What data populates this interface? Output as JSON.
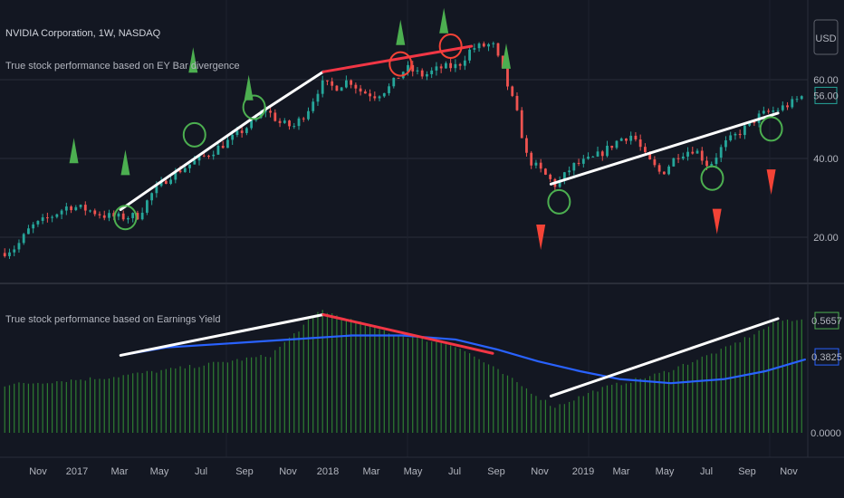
{
  "header": {
    "symbol_title": "NVIDIA Corporation, 1W, NASDAQ",
    "indicator_upper": "True stock performance based on EY Bar divergence",
    "indicator_lower": "True stock performance based on Earnings Yield",
    "currency_button": "USD"
  },
  "colors": {
    "background": "#131722",
    "grid": "#2a2e39",
    "up": "#26a69a",
    "down": "#ef5350",
    "ey_histogram": "#2e7d32",
    "ey_average": "#2962ff",
    "trendline_white": "#ffffff",
    "trendline_red": "#f23645",
    "marker_green": "#4caf50",
    "marker_red": "#f44336"
  },
  "chart_data": [
    {
      "type": "candlestick",
      "title": "NVIDIA Corporation, 1W, NASDAQ",
      "y_ticks": [
        "20.00",
        "40.00",
        "60.00"
      ],
      "ylim": [
        5,
        75
      ],
      "last_price_label": "56.00",
      "x_ticks": [
        "Nov",
        "2017",
        "Mar",
        "May",
        "Jul",
        "Sep",
        "Nov",
        "2018",
        "Mar",
        "May",
        "Jul",
        "Sep",
        "Nov",
        "2019",
        "Mar",
        "May",
        "Jul",
        "Sep",
        "Nov"
      ],
      "close_path": [
        [
          "2016-10-01",
          16.0
        ],
        [
          "2016-10-22",
          17.5
        ],
        [
          "2016-11-12",
          22.5
        ],
        [
          "2016-12-10",
          25.0
        ],
        [
          "2017-01-07",
          28.0
        ],
        [
          "2017-02-04",
          27.0
        ],
        [
          "2017-03-01",
          25.5
        ],
        [
          "2017-03-25",
          25.0
        ],
        [
          "2017-04-20",
          25.5
        ],
        [
          "2017-05-10",
          31.0
        ],
        [
          "2017-06-05",
          35.5
        ],
        [
          "2017-07-10",
          39.0
        ],
        [
          "2017-08-05",
          41.5
        ],
        [
          "2017-09-05",
          45.0
        ],
        [
          "2017-10-05",
          49.0
        ],
        [
          "2017-10-25",
          52.5
        ],
        [
          "2017-11-15",
          49.0
        ],
        [
          "2017-12-05",
          48.0
        ],
        [
          "2017-12-25",
          52.0
        ],
        [
          "2018-01-15",
          59.0
        ],
        [
          "2018-02-05",
          58.0
        ],
        [
          "2018-02-25",
          60.0
        ],
        [
          "2018-03-15",
          57.0
        ],
        [
          "2018-04-05",
          56.0
        ],
        [
          "2018-04-25",
          58.0
        ],
        [
          "2018-05-20",
          63.0
        ],
        [
          "2018-06-15",
          61.0
        ],
        [
          "2018-07-10",
          63.0
        ],
        [
          "2018-08-05",
          63.5
        ],
        [
          "2018-08-25",
          68.0
        ],
        [
          "2018-09-25",
          69.0
        ],
        [
          "2018-10-10",
          62.0
        ],
        [
          "2018-10-30",
          52.0
        ],
        [
          "2018-11-15",
          40.0
        ],
        [
          "2018-12-10",
          36.0
        ],
        [
          "2018-12-28",
          33.0
        ],
        [
          "2019-01-20",
          38.0
        ],
        [
          "2019-02-20",
          40.0
        ],
        [
          "2019-03-10",
          42.0
        ],
        [
          "2019-04-01",
          45.0
        ],
        [
          "2019-04-20",
          46.0
        ],
        [
          "2019-05-10",
          40.0
        ],
        [
          "2019-06-01",
          36.0
        ],
        [
          "2019-06-25",
          41.0
        ],
        [
          "2019-07-20",
          42.5
        ],
        [
          "2019-08-10",
          38.0
        ],
        [
          "2019-09-01",
          43.5
        ],
        [
          "2019-10-01",
          47.5
        ],
        [
          "2019-10-25",
          51.0
        ],
        [
          "2019-11-20",
          52.5
        ],
        [
          "2019-12-10",
          54.0
        ],
        [
          "2019-12-28",
          56.0
        ]
      ],
      "trendlines": [
        {
          "color": "white",
          "from": [
            "2017-03-25",
            27
          ],
          "to": [
            "2017-10-25",
            52.5
          ]
        },
        {
          "color": "white",
          "from": [
            "2017-10-25",
            52.5
          ],
          "to": [
            "2018-01-18",
            62
          ]
        },
        {
          "color": "red",
          "from": [
            "2018-01-18",
            62
          ],
          "to": [
            "2018-08-25",
            68.5
          ]
        },
        {
          "color": "white",
          "from": [
            "2018-12-20",
            33.5
          ],
          "to": [
            "2019-11-20",
            51.5
          ]
        }
      ],
      "circles": [
        {
          "color": "green",
          "x": "2017-04-01",
          "y": 25
        },
        {
          "color": "green",
          "x": "2017-07-12",
          "y": 46
        },
        {
          "color": "green",
          "x": "2017-10-08",
          "y": 53
        },
        {
          "color": "red",
          "x": "2018-05-12",
          "y": 64
        },
        {
          "color": "red",
          "x": "2018-07-25",
          "y": 68.5
        },
        {
          "color": "green",
          "x": "2019-01-01",
          "y": 29
        },
        {
          "color": "green",
          "x": "2019-08-15",
          "y": 35
        },
        {
          "color": "green",
          "x": "2019-11-10",
          "y": 47.5
        }
      ],
      "up_arrows": [
        {
          "x": "2017-01-15",
          "y": 42
        },
        {
          "x": "2017-04-01",
          "y": 39
        },
        {
          "x": "2017-07-10",
          "y": 65
        },
        {
          "x": "2017-09-30",
          "y": 58
        },
        {
          "x": "2018-05-12",
          "y": 72
        },
        {
          "x": "2018-07-15",
          "y": 75
        },
        {
          "x": "2018-10-15",
          "y": 66
        }
      ],
      "down_arrows": [
        {
          "x": "2018-12-05",
          "y": 20
        },
        {
          "x": "2019-08-22",
          "y": 24
        },
        {
          "x": "2019-11-10",
          "y": 34
        }
      ]
    },
    {
      "type": "bar",
      "title": "True stock performance based on Earnings Yield",
      "series": [
        {
          "values": "histogram"
        },
        {
          "values": "average line"
        }
      ],
      "y_ticks": [
        "0.0000"
      ],
      "value_labels": [
        "0.5657",
        "0.3825"
      ],
      "ylim": [
        0,
        0.62
      ],
      "histogram_path": [
        [
          "2016-10-01",
          0.24
        ],
        [
          "2017-03-10",
          0.28
        ],
        [
          "2017-07-01",
          0.33
        ],
        [
          "2017-11-01",
          0.39
        ],
        [
          "2018-01-15",
          0.62
        ],
        [
          "2018-02-15",
          0.58
        ],
        [
          "2018-05-01",
          0.5
        ],
        [
          "2018-08-01",
          0.44
        ],
        [
          "2018-09-20",
          0.34
        ],
        [
          "2018-11-01",
          0.25
        ],
        [
          "2018-12-25",
          0.13
        ],
        [
          "2019-03-01",
          0.22
        ],
        [
          "2019-06-01",
          0.3
        ],
        [
          "2019-09-01",
          0.42
        ],
        [
          "2019-11-20",
          0.56
        ],
        [
          "2019-12-31",
          0.58
        ]
      ],
      "average_path": [
        [
          "2017-03-25",
          0.39
        ],
        [
          "2017-06-01",
          0.43
        ],
        [
          "2017-09-01",
          0.45
        ],
        [
          "2017-12-01",
          0.47
        ],
        [
          "2018-03-01",
          0.49
        ],
        [
          "2018-05-15",
          0.49
        ],
        [
          "2018-08-01",
          0.47
        ],
        [
          "2018-10-01",
          0.42
        ],
        [
          "2018-12-01",
          0.36
        ],
        [
          "2019-02-01",
          0.31
        ],
        [
          "2019-04-01",
          0.27
        ],
        [
          "2019-06-15",
          0.25
        ],
        [
          "2019-09-01",
          0.27
        ],
        [
          "2019-11-01",
          0.31
        ],
        [
          "2019-12-31",
          0.37
        ]
      ],
      "trendlines": [
        {
          "color": "white",
          "from": [
            "2017-03-25",
            0.39
          ],
          "to": [
            "2018-01-18",
            0.595
          ]
        },
        {
          "color": "red",
          "from": [
            "2018-01-18",
            0.595
          ],
          "to": [
            "2018-09-25",
            0.4
          ]
        },
        {
          "color": "white",
          "from": [
            "2018-12-20",
            0.185
          ],
          "to": [
            "2019-11-20",
            0.575
          ]
        }
      ]
    }
  ]
}
